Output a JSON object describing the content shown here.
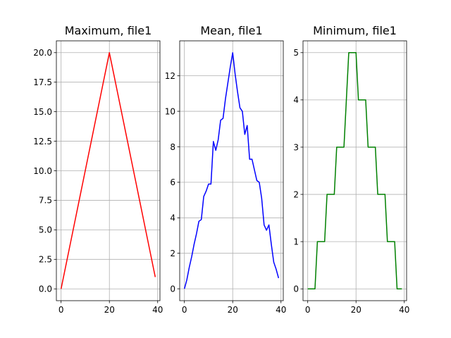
{
  "chart_data": [
    {
      "type": "line",
      "title": "Maximum, file1",
      "xlabel": "",
      "ylabel": "",
      "xlim": [
        -1.95,
        40.95
      ],
      "ylim": [
        -1.0,
        21.0
      ],
      "xticks": [
        0,
        20,
        40
      ],
      "xtick_labels": [
        "0",
        "20",
        "40"
      ],
      "yticks": [
        0,
        2.5,
        5,
        7.5,
        10,
        12.5,
        15,
        17.5,
        20
      ],
      "ytick_labels": [
        "0.0",
        "2.5",
        "5.0",
        "7.5",
        "10.0",
        "12.5",
        "15.0",
        "17.5",
        "20.0"
      ],
      "grid": true,
      "color": "#ff0000",
      "series": [
        {
          "x": [
            0,
            1,
            2,
            3,
            4,
            5,
            6,
            7,
            8,
            9,
            10,
            11,
            12,
            13,
            14,
            15,
            16,
            17,
            18,
            19,
            20,
            21,
            22,
            23,
            24,
            25,
            26,
            27,
            28,
            29,
            30,
            31,
            32,
            33,
            34,
            35,
            36,
            37,
            38,
            39
          ],
          "y": [
            0,
            1,
            2,
            3,
            4,
            5,
            6,
            7,
            8,
            9,
            10,
            11,
            12,
            13,
            14,
            15,
            16,
            17,
            18,
            19,
            20,
            19,
            18,
            17,
            16,
            15,
            14,
            13,
            12,
            11,
            10,
            9,
            8,
            7,
            6,
            5,
            4,
            3,
            2,
            1
          ]
        }
      ]
    },
    {
      "type": "line",
      "title": "Mean, file1",
      "xlabel": "",
      "ylabel": "",
      "xlim": [
        -1.95,
        40.95
      ],
      "ylim": [
        -0.67,
        13.97
      ],
      "xticks": [
        0,
        20,
        40
      ],
      "xtick_labels": [
        "0",
        "20",
        "40"
      ],
      "yticks": [
        0,
        2,
        4,
        6,
        8,
        10,
        12
      ],
      "ytick_labels": [
        "0",
        "2",
        "4",
        "6",
        "8",
        "10",
        "12"
      ],
      "grid": true,
      "color": "#0000ff",
      "series": [
        {
          "x": [
            0,
            1,
            2,
            3,
            4,
            5,
            6,
            7,
            8,
            9,
            10,
            11,
            12,
            13,
            14,
            15,
            16,
            17,
            18,
            19,
            20,
            21,
            22,
            23,
            24,
            25,
            26,
            27,
            28,
            29,
            30,
            31,
            32,
            33,
            34,
            35,
            36,
            37,
            38,
            39
          ],
          "y": [
            0,
            0.5,
            1.2,
            1.8,
            2.5,
            3.1,
            3.8,
            3.9,
            5.2,
            5.5,
            5.9,
            5.9,
            8.3,
            7.8,
            8.4,
            9.5,
            9.6,
            10.7,
            11.6,
            12.5,
            13.3,
            12.1,
            11.1,
            10.2,
            10.0,
            8.7,
            9.2,
            7.3,
            7.3,
            6.7,
            6.1,
            6.0,
            5.1,
            3.6,
            3.3,
            3.6,
            2.5,
            1.5,
            1.1,
            0.6
          ]
        }
      ]
    },
    {
      "type": "line",
      "title": "Minimum, file1",
      "xlabel": "",
      "ylabel": "",
      "xlim": [
        -1.95,
        40.95
      ],
      "ylim": [
        -0.25,
        5.25
      ],
      "xticks": [
        0,
        20,
        40
      ],
      "xtick_labels": [
        "0",
        "20",
        "40"
      ],
      "yticks": [
        0,
        1,
        2,
        3,
        4,
        5
      ],
      "ytick_labels": [
        "0",
        "1",
        "2",
        "3",
        "4",
        "5"
      ],
      "grid": true,
      "color": "#008000",
      "series": [
        {
          "x": [
            0,
            1,
            2,
            3,
            4,
            5,
            6,
            7,
            8,
            9,
            10,
            11,
            12,
            13,
            14,
            15,
            16,
            17,
            18,
            19,
            20,
            21,
            22,
            23,
            24,
            25,
            26,
            27,
            28,
            29,
            30,
            31,
            32,
            33,
            34,
            35,
            36,
            37,
            38,
            39
          ],
          "y": [
            0,
            0,
            0,
            0,
            1,
            1,
            1,
            1,
            2,
            2,
            2,
            2,
            3,
            3,
            3,
            3,
            4,
            5,
            5,
            5,
            5,
            4,
            4,
            4,
            4,
            3,
            3,
            3,
            3,
            2,
            2,
            2,
            2,
            1,
            1,
            1,
            1,
            0,
            0,
            0
          ]
        }
      ]
    }
  ]
}
